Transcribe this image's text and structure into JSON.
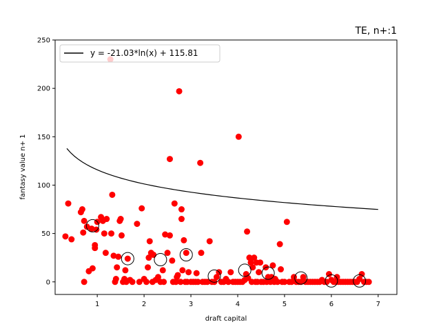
{
  "chart_data": {
    "type": "scatter",
    "title": "TE, n+:1",
    "xlabel": "draft capital",
    "ylabel": "fantasy value n+ 1",
    "xlim": [
      0.1,
      7.4
    ],
    "ylim": [
      -13,
      250
    ],
    "x_ticks": [
      1,
      2,
      3,
      4,
      5,
      6,
      7
    ],
    "y_ticks": [
      0,
      50,
      100,
      150,
      200,
      250
    ],
    "grid": false,
    "legend_position": "top-left",
    "colors": {
      "points": "#ff0000",
      "fit_line": "#000000",
      "bin_markers": "#000000",
      "background": "#ffffff"
    },
    "fit": {
      "label": "y = -21.03*ln(x) + 115.81",
      "a": -21.03,
      "b": 115.81,
      "x_start": 0.35,
      "x_end": 7.0
    },
    "series": [
      {
        "values": [
          [
            0.32,
            47
          ],
          [
            0.38,
            81
          ],
          [
            0.45,
            44
          ],
          [
            0.65,
            72
          ],
          [
            0.68,
            75
          ],
          [
            0.7,
            51
          ],
          [
            0.72,
            63
          ],
          [
            0.72,
            0
          ],
          [
            0.78,
            57
          ],
          [
            0.82,
            11
          ],
          [
            0.88,
            55
          ],
          [
            0.9,
            14
          ],
          [
            0.95,
            35
          ],
          [
            0.95,
            38
          ],
          [
            0.98,
            54
          ],
          [
            1.0,
            62
          ],
          [
            1.08,
            67
          ],
          [
            1.12,
            63
          ],
          [
            1.15,
            50
          ],
          [
            1.18,
            30
          ],
          [
            1.2,
            65
          ],
          [
            1.28,
            230
          ],
          [
            1.3,
            50
          ],
          [
            1.32,
            90
          ],
          [
            1.35,
            27
          ],
          [
            1.38,
            0
          ],
          [
            1.4,
            3
          ],
          [
            1.42,
            15
          ],
          [
            1.45,
            26
          ],
          [
            1.48,
            63
          ],
          [
            1.5,
            65
          ],
          [
            1.52,
            48
          ],
          [
            1.55,
            0
          ],
          [
            1.58,
            3
          ],
          [
            1.6,
            12
          ],
          [
            1.62,
            0
          ],
          [
            1.65,
            24
          ],
          [
            1.7,
            2
          ],
          [
            1.75,
            0
          ],
          [
            1.85,
            60
          ],
          [
            1.9,
            0
          ],
          [
            1.95,
            76
          ],
          [
            2.0,
            3
          ],
          [
            2.05,
            0
          ],
          [
            2.08,
            15
          ],
          [
            2.1,
            25
          ],
          [
            2.12,
            42
          ],
          [
            2.15,
            30
          ],
          [
            2.18,
            0
          ],
          [
            2.2,
            28
          ],
          [
            2.25,
            2
          ],
          [
            2.3,
            5
          ],
          [
            2.35,
            0
          ],
          [
            2.4,
            12
          ],
          [
            2.42,
            0
          ],
          [
            2.45,
            49
          ],
          [
            2.5,
            30
          ],
          [
            2.55,
            48
          ],
          [
            2.55,
            127
          ],
          [
            2.6,
            22
          ],
          [
            2.62,
            0
          ],
          [
            2.65,
            81
          ],
          [
            2.68,
            0
          ],
          [
            2.7,
            5
          ],
          [
            2.72,
            7
          ],
          [
            2.75,
            197
          ],
          [
            2.78,
            0
          ],
          [
            2.8,
            75
          ],
          [
            2.8,
            65
          ],
          [
            2.82,
            12
          ],
          [
            2.85,
            43
          ],
          [
            2.88,
            0
          ],
          [
            2.9,
            30
          ],
          [
            2.92,
            0
          ],
          [
            2.95,
            10
          ],
          [
            3.0,
            0
          ],
          [
            3.05,
            0
          ],
          [
            3.1,
            0
          ],
          [
            3.12,
            9
          ],
          [
            3.15,
            0
          ],
          [
            3.2,
            123
          ],
          [
            3.22,
            30
          ],
          [
            3.25,
            0
          ],
          [
            3.3,
            0
          ],
          [
            3.35,
            0
          ],
          [
            3.4,
            42
          ],
          [
            3.45,
            0
          ],
          [
            3.5,
            0
          ],
          [
            3.55,
            5
          ],
          [
            3.6,
            10
          ],
          [
            3.65,
            0
          ],
          [
            3.7,
            0
          ],
          [
            3.75,
            3
          ],
          [
            3.8,
            0
          ],
          [
            3.85,
            10
          ],
          [
            3.9,
            0
          ],
          [
            3.95,
            0
          ],
          [
            4.0,
            0
          ],
          [
            4.02,
            150
          ],
          [
            4.05,
            0
          ],
          [
            4.1,
            0
          ],
          [
            4.15,
            2
          ],
          [
            4.18,
            8
          ],
          [
            4.2,
            52
          ],
          [
            4.22,
            4
          ],
          [
            4.25,
            25
          ],
          [
            4.28,
            20
          ],
          [
            4.3,
            0
          ],
          [
            4.32,
            15
          ],
          [
            4.35,
            25
          ],
          [
            4.38,
            0
          ],
          [
            4.4,
            20
          ],
          [
            4.42,
            0
          ],
          [
            4.45,
            10
          ],
          [
            4.48,
            20
          ],
          [
            4.5,
            0
          ],
          [
            4.55,
            0
          ],
          [
            4.6,
            15
          ],
          [
            4.62,
            0
          ],
          [
            4.65,
            5
          ],
          [
            4.7,
            0
          ],
          [
            4.72,
            5
          ],
          [
            4.75,
            17
          ],
          [
            4.78,
            0
          ],
          [
            4.8,
            3
          ],
          [
            4.85,
            0
          ],
          [
            4.9,
            39
          ],
          [
            4.92,
            13
          ],
          [
            4.95,
            0
          ],
          [
            5.0,
            0
          ],
          [
            5.05,
            62
          ],
          [
            5.1,
            0
          ],
          [
            5.15,
            0
          ],
          [
            5.2,
            5
          ],
          [
            5.25,
            0
          ],
          [
            5.3,
            0
          ],
          [
            5.35,
            0
          ],
          [
            5.4,
            5
          ],
          [
            5.45,
            0
          ],
          [
            5.5,
            0
          ],
          [
            5.55,
            0
          ],
          [
            5.6,
            0
          ],
          [
            5.65,
            0
          ],
          [
            5.7,
            0
          ],
          [
            5.75,
            0
          ],
          [
            5.8,
            2
          ],
          [
            5.85,
            0
          ],
          [
            5.9,
            0
          ],
          [
            5.95,
            8
          ],
          [
            6.0,
            2
          ],
          [
            6.05,
            0
          ],
          [
            6.1,
            0
          ],
          [
            6.12,
            5
          ],
          [
            6.15,
            0
          ],
          [
            6.2,
            0
          ],
          [
            6.25,
            0
          ],
          [
            6.3,
            0
          ],
          [
            6.35,
            0
          ],
          [
            6.4,
            0
          ],
          [
            6.45,
            0
          ],
          [
            6.5,
            0
          ],
          [
            6.55,
            0
          ],
          [
            6.6,
            3
          ],
          [
            6.65,
            8
          ],
          [
            6.7,
            0
          ],
          [
            6.75,
            0
          ],
          [
            6.8,
            0
          ]
        ]
      }
    ],
    "bin_means": [
      [
        0.9,
        58
      ],
      [
        1.65,
        24
      ],
      [
        2.35,
        23
      ],
      [
        2.9,
        28
      ],
      [
        3.5,
        6
      ],
      [
        4.15,
        12
      ],
      [
        4.65,
        9
      ],
      [
        5.35,
        4
      ],
      [
        6.0,
        1
      ],
      [
        6.6,
        1
      ]
    ]
  }
}
